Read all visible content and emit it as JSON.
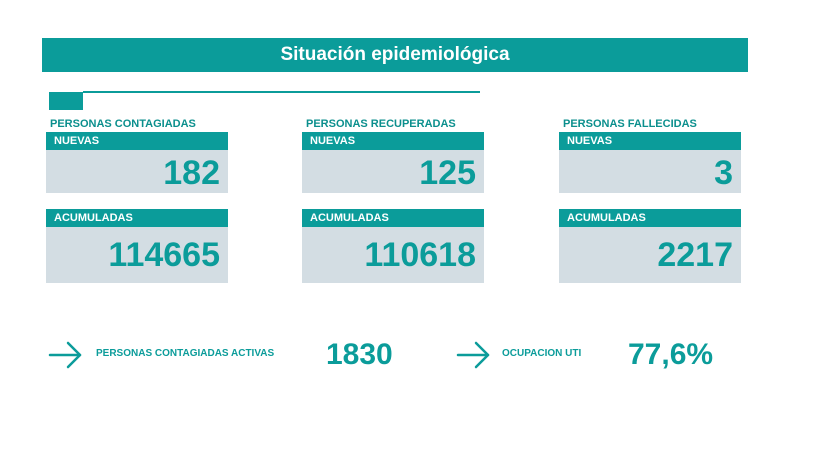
{
  "title": "Situación epidemiológica",
  "columns": [
    {
      "heading": "PERSONAS CONTAGIADAS",
      "new_label": "NUEVAS",
      "new_value": "182",
      "acc_label": "ACUMULADAS",
      "acc_value": "114665"
    },
    {
      "heading": "PERSONAS RECUPERADAS",
      "new_label": "NUEVAS",
      "new_value": "125",
      "acc_label": "ACUMULADAS",
      "acc_value": "110618"
    },
    {
      "heading": "PERSONAS FALLECIDAS",
      "new_label": "NUEVAS",
      "new_value": "3",
      "acc_label": "ACUMULADAS",
      "acc_value": "2217"
    }
  ],
  "bottom": {
    "active_label": "PERSONAS CONTAGIADAS ACTIVAS",
    "active_value": "1830",
    "uti_label": "OCUPACION UTI",
    "uti_value": "77,6%"
  },
  "colors": {
    "accent": "#0b9c9a",
    "box": "#d3dde3"
  },
  "icons": {
    "bullet": "arrow-right-icon"
  }
}
